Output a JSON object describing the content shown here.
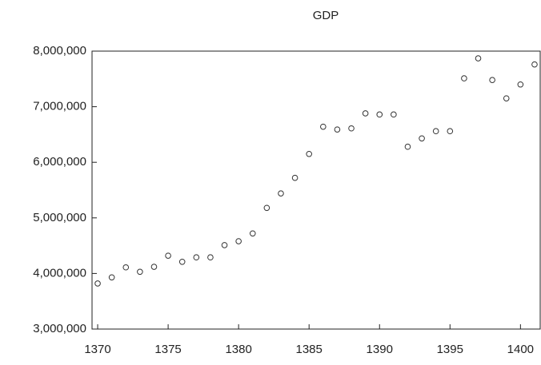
{
  "chart_data": {
    "type": "scatter",
    "title": "GDP",
    "x": [
      1370,
      1371,
      1372,
      1373,
      1374,
      1375,
      1376,
      1377,
      1378,
      1379,
      1380,
      1381,
      1382,
      1383,
      1384,
      1385,
      1386,
      1387,
      1388,
      1389,
      1390,
      1391,
      1392,
      1393,
      1394,
      1395,
      1396,
      1397,
      1398,
      1399,
      1400,
      1401
    ],
    "values": [
      3820000,
      3930000,
      4110000,
      4030000,
      4120000,
      4320000,
      4210000,
      4290000,
      4290000,
      4510000,
      4580000,
      4720000,
      5180000,
      5440000,
      5720000,
      6150000,
      6640000,
      6590000,
      6610000,
      6880000,
      6860000,
      6860000,
      6280000,
      6430000,
      6560000,
      6560000,
      7510000,
      7870000,
      7480000,
      7150000,
      7400000,
      7760000
    ],
    "color": "#333333",
    "xlim": [
      1369.6,
      1401.4
    ],
    "xticks": [
      1370,
      1375,
      1380,
      1385,
      1390,
      1395,
      1400
    ],
    "ylim": [
      3000000,
      8000000
    ],
    "yticks": [
      {
        "value": 3000000,
        "label": "3,000,000"
      },
      {
        "value": 4000000,
        "label": "4,000,000"
      },
      {
        "value": 5000000,
        "label": "5,000,000"
      },
      {
        "value": 6000000,
        "label": "6,000,000"
      },
      {
        "value": 7000000,
        "label": "7,000,000"
      },
      {
        "value": 8000000,
        "label": "8,000,000"
      }
    ]
  }
}
